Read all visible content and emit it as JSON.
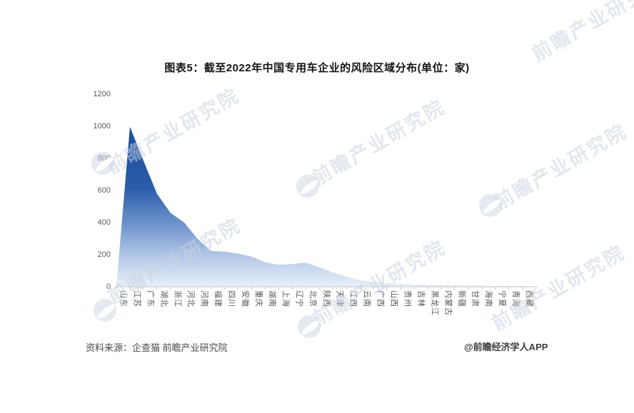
{
  "title": "图表5：截至2022年中国专用车企业的风险区域分布(单位：家)",
  "footer": {
    "source": "资料来源：企查猫 前瞻产业研究院",
    "credit": "@前瞻经济学人APP"
  },
  "watermark": {
    "text": "前瞻产业研究院"
  },
  "colors": {
    "area_top": "#1b4c9e",
    "area_mid": "#6d92cc",
    "area_bottom": "#e9f1fa",
    "axis_line": "#c3c3c3",
    "tick_label": "#595959"
  },
  "chart_data": {
    "type": "area",
    "title": "图表5：截至2022年中国专用车企业的风险区域分布(单位：家)",
    "unit": "家",
    "categories": [
      "山东",
      "江苏",
      "广东",
      "湖北",
      "浙江",
      "河北",
      "河南",
      "福建",
      "四川",
      "安徽",
      "重庆",
      "湖南",
      "上海",
      "辽宁",
      "北京",
      "陕西",
      "天津",
      "江西",
      "云南",
      "广西",
      "山西",
      "贵州",
      "吉林",
      "黑龙江",
      "内蒙古",
      "新疆",
      "甘肃",
      "海南",
      "宁夏",
      "青海",
      "西藏"
    ],
    "values": [
      997,
      786,
      579,
      460,
      401,
      298,
      223,
      218,
      206,
      188,
      152,
      137,
      142,
      150,
      121,
      89,
      63,
      41,
      31,
      23,
      18,
      15,
      13,
      11,
      10,
      8,
      7,
      6,
      5,
      3,
      2
    ],
    "xlabel": "",
    "ylabel": "",
    "ylim": [
      0,
      1200
    ],
    "yticks": [
      0,
      200,
      400,
      600,
      800,
      1000,
      1200
    ],
    "grid": false,
    "legend": false
  }
}
